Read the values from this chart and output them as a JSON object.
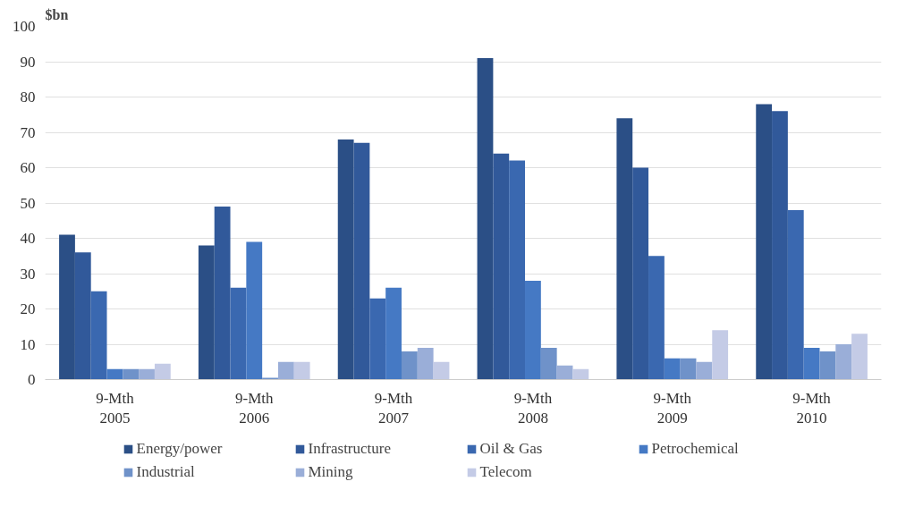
{
  "chart_data": {
    "type": "bar",
    "ylabel": "$bn",
    "categories": [
      "9-Mth\n2005",
      "9-Mth\n2006",
      "9-Mth\n2007",
      "9-Mth\n2008",
      "9-Mth\n2009",
      "9-Mth\n2010"
    ],
    "series": [
      {
        "name": "Energy/power",
        "color": "#2b4f86",
        "values": [
          41,
          38,
          68,
          91,
          74,
          78
        ]
      },
      {
        "name": "Infrastructure",
        "color": "#31599a",
        "values": [
          36,
          49,
          67,
          64,
          60,
          76
        ]
      },
      {
        "name": "Oil & Gas",
        "color": "#3a68b0",
        "values": [
          25,
          26,
          23,
          62,
          35,
          48
        ]
      },
      {
        "name": "Petrochemical",
        "color": "#4579c4",
        "values": [
          3,
          39,
          26,
          28,
          6,
          9
        ]
      },
      {
        "name": "Industrial",
        "color": "#6f92c9",
        "values": [
          3,
          0.5,
          8,
          9,
          6,
          8
        ]
      },
      {
        "name": "Mining",
        "color": "#9aaed8",
        "values": [
          3,
          5,
          9,
          4,
          5,
          10
        ]
      },
      {
        "name": "Telecom",
        "color": "#c4cbe6",
        "values": [
          4.5,
          5,
          5,
          3,
          14,
          13
        ]
      }
    ],
    "ylim": [
      0,
      100
    ],
    "yticks": [
      0,
      10,
      20,
      30,
      40,
      50,
      60,
      70,
      80,
      90,
      100
    ],
    "grid": "y",
    "legend": "bottom"
  }
}
